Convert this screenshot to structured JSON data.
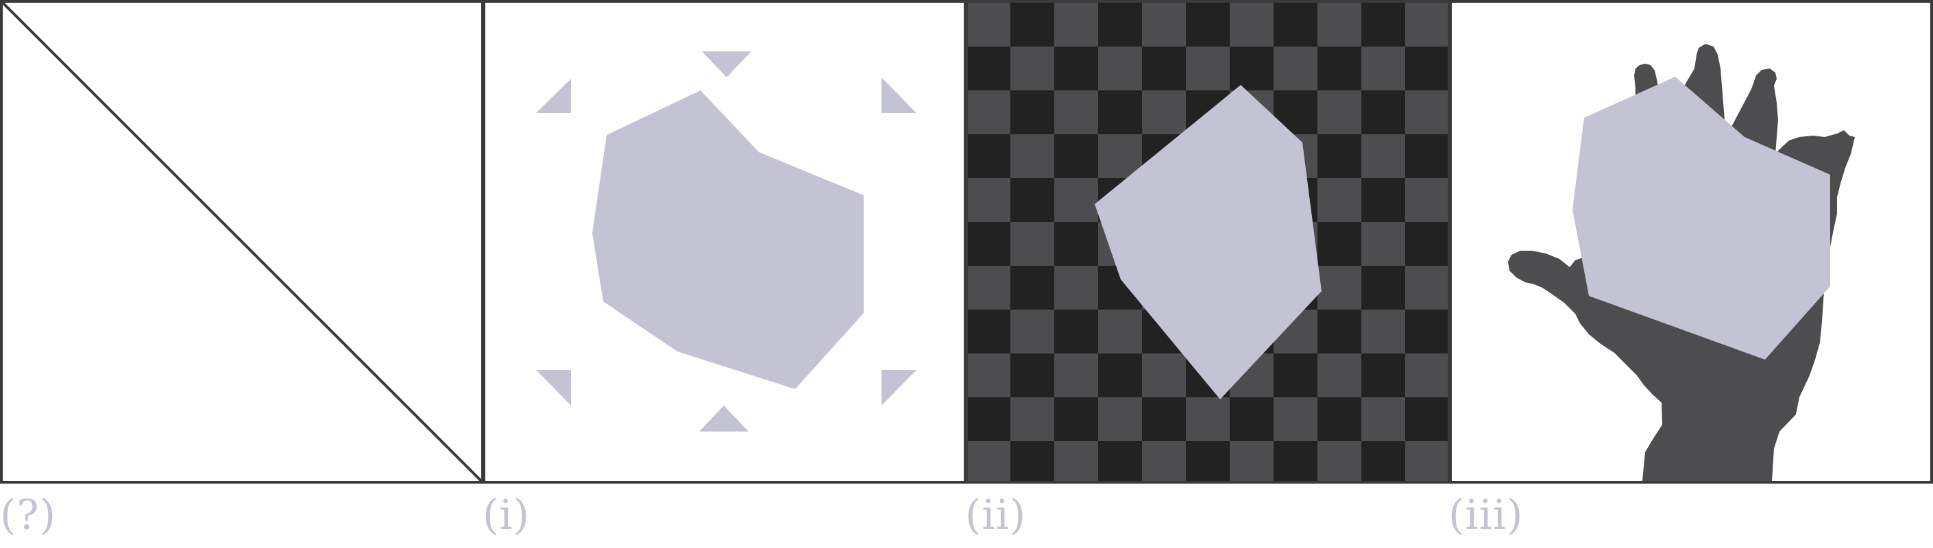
{
  "panels": [
    {
      "label": "(?)"
    },
    {
      "label": "(i)"
    },
    {
      "label": "(ii)"
    },
    {
      "label": "(iii)"
    }
  ],
  "colors": {
    "frame": "#3a3a3a",
    "shape_fill": "#c4c3d4",
    "checker_dark": "#222222",
    "checker_light": "#4d4d4f",
    "hand": "#4d4d4f",
    "label": "#c4c3d4"
  },
  "icons": {
    "panel_0": "diagonal-line",
    "panel_1": "hexagon-with-corner-triangles",
    "panel_2": "polygon-on-checkerboard",
    "panel_3": "polygon-on-hand"
  }
}
